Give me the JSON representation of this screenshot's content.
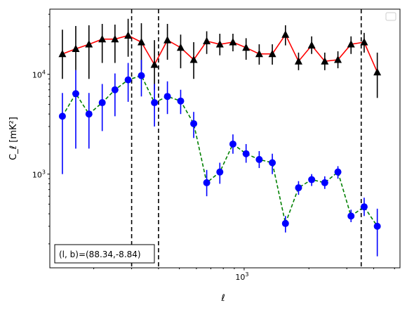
{
  "chart_data": {
    "type": "scatter",
    "title": "",
    "xlabel": "ℓ",
    "ylabel": "C_ℓ  [mK²]",
    "x_scale": "log",
    "y_scale": "log",
    "xlim": [
      125,
      5300
    ],
    "ylim": [
      115,
      45000
    ],
    "x_tick_labels": [
      {
        "value": 1000,
        "base": "10",
        "exp": "3"
      }
    ],
    "y_tick_labels": [
      {
        "value": 1000,
        "base": "10",
        "exp": "3"
      },
      {
        "value": 10000,
        "base": "10",
        "exp": "4"
      }
    ],
    "legend": {
      "placement": "top-right",
      "entries": []
    },
    "annotation": "(l, b)=(88.34,-8.84)",
    "vlines": [
      300,
      400,
      3500
    ],
    "series": [
      {
        "marker": "triangle",
        "color": "#000000",
        "line_color": "#ff0000",
        "line_style": "solid",
        "points": [
          {
            "x": 143,
            "y": 16000,
            "lo": 9000,
            "hi": 28000
          },
          {
            "x": 165,
            "y": 18000,
            "lo": 11000,
            "hi": 30500
          },
          {
            "x": 190,
            "y": 20000,
            "lo": 9000,
            "hi": 31000
          },
          {
            "x": 219,
            "y": 22500,
            "lo": 13000,
            "hi": 32000
          },
          {
            "x": 251,
            "y": 22500,
            "lo": 13000,
            "hi": 31500
          },
          {
            "x": 289,
            "y": 24500,
            "lo": 15000,
            "hi": 36000
          },
          {
            "x": 333,
            "y": 21000,
            "lo": 11000,
            "hi": 32500
          },
          {
            "x": 383,
            "y": 12500,
            "lo": 7000,
            "hi": 22000
          },
          {
            "x": 440,
            "y": 22000,
            "lo": 14000,
            "hi": 32000
          },
          {
            "x": 507,
            "y": 18500,
            "lo": 11500,
            "hi": 25000
          },
          {
            "x": 583,
            "y": 14000,
            "lo": 9000,
            "hi": 21000
          },
          {
            "x": 670,
            "y": 21500,
            "lo": 16000,
            "hi": 27000
          },
          {
            "x": 771,
            "y": 20000,
            "lo": 15500,
            "hi": 25500
          },
          {
            "x": 887,
            "y": 21000,
            "lo": 17000,
            "hi": 25500
          },
          {
            "x": 1021,
            "y": 18500,
            "lo": 14000,
            "hi": 23000
          },
          {
            "x": 1175,
            "y": 16000,
            "lo": 12500,
            "hi": 20000
          },
          {
            "x": 1352,
            "y": 16000,
            "lo": 12500,
            "hi": 20000
          },
          {
            "x": 1556,
            "y": 25000,
            "lo": 19500,
            "hi": 31000
          },
          {
            "x": 1790,
            "y": 13500,
            "lo": 11000,
            "hi": 16500
          },
          {
            "x": 2060,
            "y": 19500,
            "lo": 16000,
            "hi": 24000
          },
          {
            "x": 2370,
            "y": 13500,
            "lo": 11000,
            "hi": 16500
          },
          {
            "x": 2728,
            "y": 14000,
            "lo": 11500,
            "hi": 17000
          },
          {
            "x": 3139,
            "y": 20000,
            "lo": 16000,
            "hi": 24000
          },
          {
            "x": 3612,
            "y": 21000,
            "lo": 16500,
            "hi": 26000
          },
          {
            "x": 4157,
            "y": 10500,
            "lo": 5800,
            "hi": 16500
          }
        ]
      },
      {
        "marker": "circle",
        "color": "#0000ff",
        "line_color": "#008000",
        "line_style": "dashed",
        "points": [
          {
            "x": 143,
            "y": 3800,
            "lo": 1000,
            "hi": 6500
          },
          {
            "x": 165,
            "y": 6400,
            "lo": 1800,
            "hi": 11000
          },
          {
            "x": 190,
            "y": 4000,
            "lo": 1800,
            "hi": 6500
          },
          {
            "x": 219,
            "y": 5200,
            "lo": 2700,
            "hi": 8000
          },
          {
            "x": 251,
            "y": 7000,
            "lo": 3800,
            "hi": 10200
          },
          {
            "x": 289,
            "y": 8800,
            "lo": 5300,
            "hi": 13000
          },
          {
            "x": 333,
            "y": 9700,
            "lo": 6000,
            "hi": 14000
          },
          {
            "x": 383,
            "y": 5200,
            "lo": 3000,
            "hi": 8000
          },
          {
            "x": 440,
            "y": 6000,
            "lo": 4000,
            "hi": 8500
          },
          {
            "x": 507,
            "y": 5400,
            "lo": 4000,
            "hi": 7000
          },
          {
            "x": 583,
            "y": 3200,
            "lo": 2300,
            "hi": 4200
          },
          {
            "x": 670,
            "y": 820,
            "lo": 600,
            "hi": 1100
          },
          {
            "x": 771,
            "y": 1050,
            "lo": 800,
            "hi": 1300
          },
          {
            "x": 887,
            "y": 2000,
            "lo": 1600,
            "hi": 2500
          },
          {
            "x": 1021,
            "y": 1600,
            "lo": 1300,
            "hi": 2000
          },
          {
            "x": 1175,
            "y": 1400,
            "lo": 1150,
            "hi": 1700
          },
          {
            "x": 1352,
            "y": 1300,
            "lo": 1000,
            "hi": 1600
          },
          {
            "x": 1556,
            "y": 320,
            "lo": 260,
            "hi": 380
          },
          {
            "x": 1790,
            "y": 730,
            "lo": 620,
            "hi": 850
          },
          {
            "x": 2060,
            "y": 880,
            "lo": 760,
            "hi": 1000
          },
          {
            "x": 2370,
            "y": 820,
            "lo": 710,
            "hi": 950
          },
          {
            "x": 2728,
            "y": 1050,
            "lo": 900,
            "hi": 1200
          },
          {
            "x": 3139,
            "y": 380,
            "lo": 330,
            "hi": 440
          },
          {
            "x": 3612,
            "y": 470,
            "lo": 380,
            "hi": 580
          },
          {
            "x": 4157,
            "y": 300,
            "lo": 150,
            "hi": 450
          }
        ]
      }
    ]
  }
}
